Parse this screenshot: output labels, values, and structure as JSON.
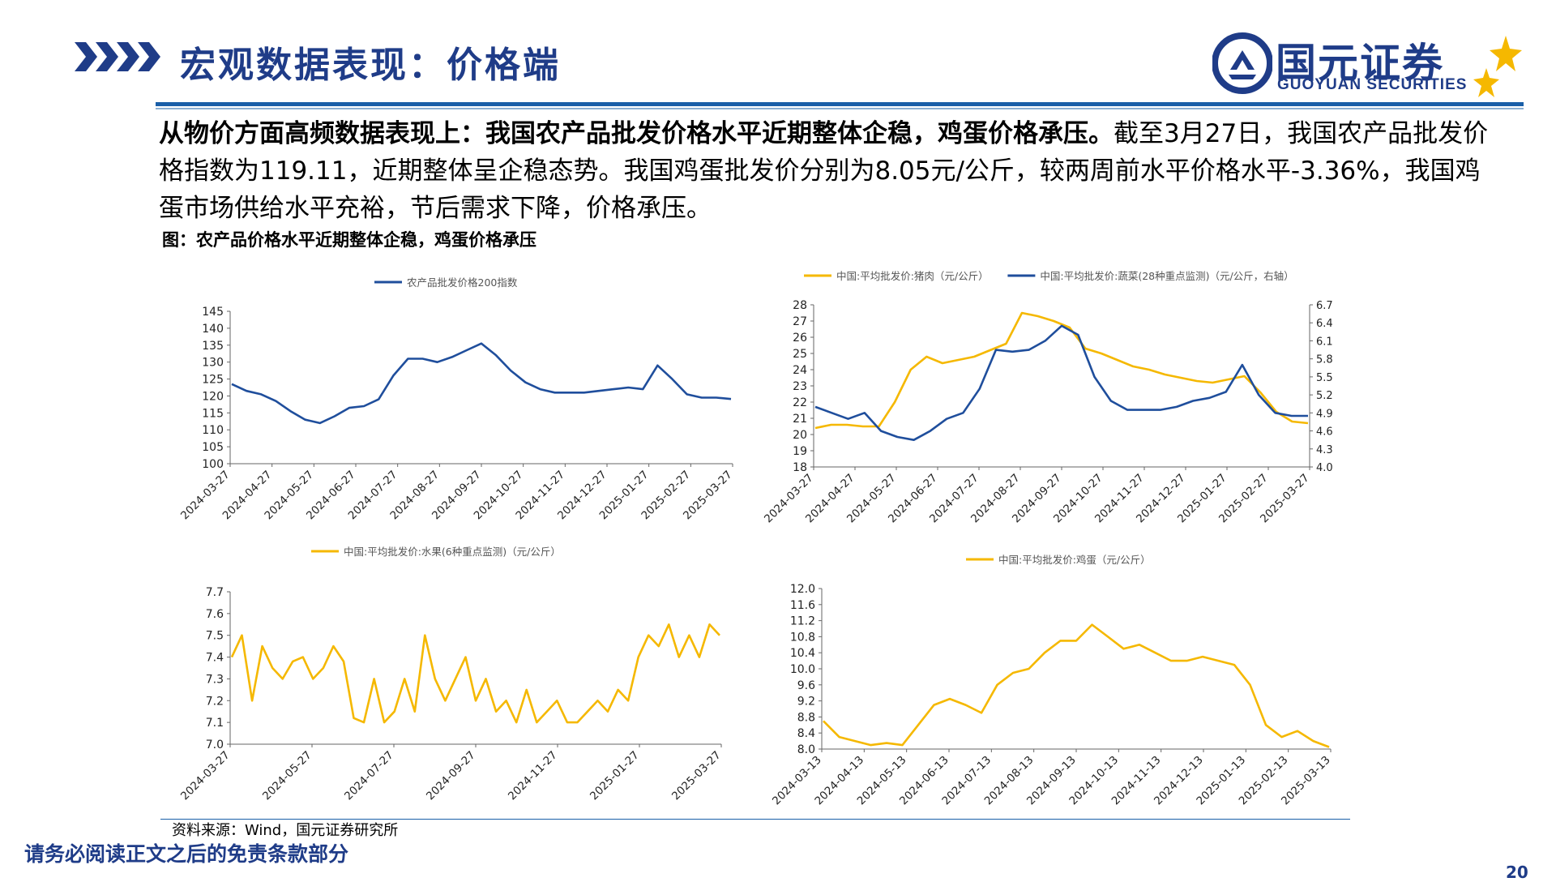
{
  "header": {
    "title": "宏观数据表现：价格端",
    "logo_cn": "国元证券",
    "logo_en": "GUOYUAN SECURITIES",
    "brand_color": "#1f3c88",
    "accent_color": "#f5b800"
  },
  "summary": {
    "bold": "从物价方面高频数据表现上：我国农产品批发价格水平近期整体企稳，鸡蛋价格承压。",
    "text": "截至3月27日，我国农产品批发价格指数为119.11，近期整体呈企稳态势。我国鸡蛋批发价分别为8.05元/公斤，较两周前水平价格水平-3.36%，我国鸡蛋市场供给水平充裕，节后需求下降，价格承压。"
  },
  "figure_caption": "图：农产品价格水平近期整体企稳，鸡蛋价格承压",
  "source": "资料来源：Wind，国元证券研究所",
  "disclaimer": "请务必阅读正文之后的免责条款部分",
  "page_number": "20",
  "chart_data": [
    {
      "type": "line",
      "legend": [
        "农产品批发价格200指数"
      ],
      "colors": [
        "#1f4e9c"
      ],
      "x_ticks": [
        "2024-03-27",
        "2024-04-27",
        "2024-05-27",
        "2024-06-27",
        "2024-07-27",
        "2024-08-27",
        "2024-09-27",
        "2024-10-27",
        "2024-11-27",
        "2024-12-27",
        "2025-01-27",
        "2025-02-27",
        "2025-03-27"
      ],
      "ylim": [
        100,
        145
      ],
      "y_ticks": [
        "100",
        "105",
        "110",
        "115",
        "120",
        "125",
        "130",
        "135",
        "140",
        "145"
      ],
      "series": [
        {
          "name": "农产品批发价格200指数",
          "values": [
            123.5,
            121.5,
            120.5,
            118.5,
            115.5,
            113,
            112,
            114,
            116.5,
            117,
            119,
            126,
            131,
            131,
            130,
            131.5,
            133.5,
            135.5,
            132,
            127.5,
            124,
            122,
            121,
            121,
            121,
            121.5,
            122,
            122.5,
            122,
            129,
            125,
            120.5,
            119.5,
            119.5,
            119.11
          ]
        }
      ]
    },
    {
      "type": "line",
      "legend": [
        "中国:平均批发价:猪肉（元/公斤）",
        "中国:平均批发价:蔬菜(28种重点监测)（元/公斤，右轴）"
      ],
      "colors": [
        "#f5b800",
        "#1f4e9c"
      ],
      "x_ticks": [
        "2024-03-27",
        "2024-04-27",
        "2024-05-27",
        "2024-06-27",
        "2024-07-27",
        "2024-08-27",
        "2024-09-27",
        "2024-10-27",
        "2024-11-27",
        "2024-12-27",
        "2025-01-27",
        "2025-02-27",
        "2025-03-27"
      ],
      "ylim": [
        18,
        28
      ],
      "y_ticks": [
        "18",
        "19",
        "20",
        "21",
        "22",
        "23",
        "24",
        "25",
        "26",
        "27",
        "28"
      ],
      "y2lim": [
        4.0,
        6.7
      ],
      "y2_ticks": [
        "4.0",
        "4.3",
        "4.6",
        "4.9",
        "5.2",
        "5.5",
        "5.8",
        "6.1",
        "6.4",
        "6.7"
      ],
      "series": [
        {
          "name": "中国:平均批发价:猪肉",
          "axis": "left",
          "values": [
            20.4,
            20.6,
            20.6,
            20.5,
            20.5,
            22,
            24,
            24.8,
            24.4,
            24.6,
            24.8,
            25.2,
            25.6,
            27.5,
            27.3,
            27,
            26.6,
            25.3,
            25,
            24.6,
            24.2,
            24,
            23.7,
            23.5,
            23.3,
            23.2,
            23.4,
            23.6,
            22.6,
            21.4,
            20.8,
            20.7
          ]
        },
        {
          "name": "中国:平均批发价:蔬菜(28种重点监测)",
          "axis": "right",
          "values": [
            5.0,
            4.9,
            4.8,
            4.9,
            4.6,
            4.5,
            4.45,
            4.6,
            4.8,
            4.9,
            5.3,
            5.95,
            5.92,
            5.95,
            6.1,
            6.35,
            6.2,
            5.5,
            5.1,
            4.95,
            4.95,
            4.95,
            5.0,
            5.1,
            5.15,
            5.25,
            5.7,
            5.2,
            4.9,
            4.85,
            4.85
          ]
        }
      ]
    },
    {
      "type": "line",
      "legend": [
        "中国:平均批发价:水果(6种重点监测)（元/公斤）"
      ],
      "colors": [
        "#f5b800"
      ],
      "x_ticks": [
        "2024-03-27",
        "2024-05-27",
        "2024-07-27",
        "2024-09-27",
        "2024-11-27",
        "2025-01-27",
        "2025-03-27"
      ],
      "ylim": [
        7.0,
        7.7
      ],
      "y_ticks": [
        "7.0",
        "7.1",
        "7.2",
        "7.3",
        "7.4",
        "7.5",
        "7.6",
        "7.7"
      ],
      "series": [
        {
          "name": "中国:平均批发价:水果(6种重点监测)",
          "values": [
            7.4,
            7.5,
            7.2,
            7.45,
            7.35,
            7.3,
            7.38,
            7.4,
            7.3,
            7.35,
            7.45,
            7.38,
            7.12,
            7.1,
            7.3,
            7.1,
            7.15,
            7.3,
            7.15,
            7.5,
            7.3,
            7.2,
            7.3,
            7.4,
            7.2,
            7.3,
            7.15,
            7.2,
            7.1,
            7.25,
            7.1,
            7.15,
            7.2,
            7.1,
            7.1,
            7.15,
            7.2,
            7.15,
            7.25,
            7.2,
            7.4,
            7.5,
            7.45,
            7.55,
            7.4,
            7.5,
            7.4,
            7.55,
            7.5
          ]
        }
      ]
    },
    {
      "type": "line",
      "legend": [
        "中国:平均批发价:鸡蛋（元/公斤）"
      ],
      "colors": [
        "#f5b800"
      ],
      "x_ticks": [
        "2024-03-13",
        "2024-04-13",
        "2024-05-13",
        "2024-06-13",
        "2024-07-13",
        "2024-08-13",
        "2024-09-13",
        "2024-10-13",
        "2024-11-13",
        "2024-12-13",
        "2025-01-13",
        "2025-02-13",
        "2025-03-13"
      ],
      "ylim": [
        8.0,
        12.0
      ],
      "y_ticks": [
        "8.0",
        "8.4",
        "8.8",
        "9.2",
        "9.6",
        "10.0",
        "10.4",
        "10.8",
        "11.2",
        "11.6",
        "12.0"
      ],
      "series": [
        {
          "name": "中国:平均批发价:鸡蛋",
          "values": [
            8.7,
            8.3,
            8.2,
            8.1,
            8.15,
            8.1,
            8.6,
            9.1,
            9.25,
            9.1,
            8.9,
            9.6,
            9.9,
            10.0,
            10.4,
            10.7,
            10.7,
            11.1,
            10.8,
            10.5,
            10.6,
            10.4,
            10.2,
            10.2,
            10.3,
            10.2,
            10.1,
            9.6,
            8.6,
            8.3,
            8.45,
            8.2,
            8.05
          ]
        }
      ]
    }
  ]
}
